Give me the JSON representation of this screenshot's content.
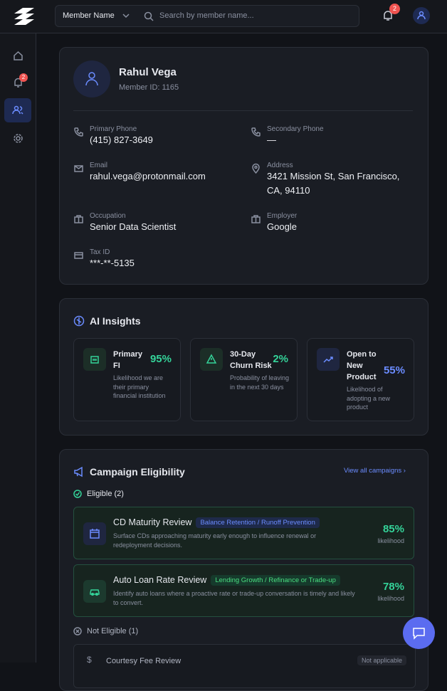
{
  "topbar": {
    "filter": "Member Name",
    "search_placeholder": "Search by member name...",
    "notifications": "2"
  },
  "sidebar": {
    "notifications": "2"
  },
  "member": {
    "name": "Rahul Vega",
    "id": "Member ID: 1165",
    "fields": [
      {
        "label": "Primary Phone",
        "value": "(415) 827-3649"
      },
      {
        "label": "Secondary Phone",
        "value": "—"
      },
      {
        "label": "Email",
        "value": "rahul.vega@protonmail.com"
      },
      {
        "label": "Address",
        "value": "3421 Mission St, San Francisco, CA, 94110"
      },
      {
        "label": "Occupation",
        "value": "Senior Data Scientist"
      },
      {
        "label": "Employer",
        "value": "Google"
      },
      {
        "label": "Tax ID",
        "value": "***-**-5135"
      }
    ]
  },
  "insights": {
    "title": "AI Insights",
    "cards": [
      {
        "title": "Primary FI",
        "value": "95%",
        "desc": "Likelihood we are their primary financial institution"
      },
      {
        "title": "30-Day Churn Risk",
        "value": "2%",
        "desc": "Probability of leaving in the next 30 days"
      },
      {
        "title": "Open to New Product",
        "value": "55%",
        "desc": "Likelihood of adopting a new product"
      }
    ]
  },
  "campaigns": {
    "title": "Campaign Eligibility",
    "link": "View all campaigns",
    "eligible_heading": "Eligible (2)",
    "eligible": [
      {
        "title": "CD Maturity Review",
        "tag": "Balance Retention / Runoff Prevention",
        "desc": "Surface CDs approaching maturity early enough to influence renewal or redeployment decisions.",
        "value": "85%",
        "unit": "likelihood"
      },
      {
        "title": "Auto Loan Rate Review",
        "tag": "Lending Growth / Refinance or Trade-up",
        "desc": "Identify auto loans where a proactive rate or trade-up conversation is timely and likely to convert.",
        "value": "78%",
        "unit": "likelihood"
      }
    ],
    "not_eligible_heading": "Not Eligible (1)",
    "not_eligible": [
      {
        "title": "Courtesy Fee Review",
        "status": "Not applicable"
      }
    ]
  }
}
